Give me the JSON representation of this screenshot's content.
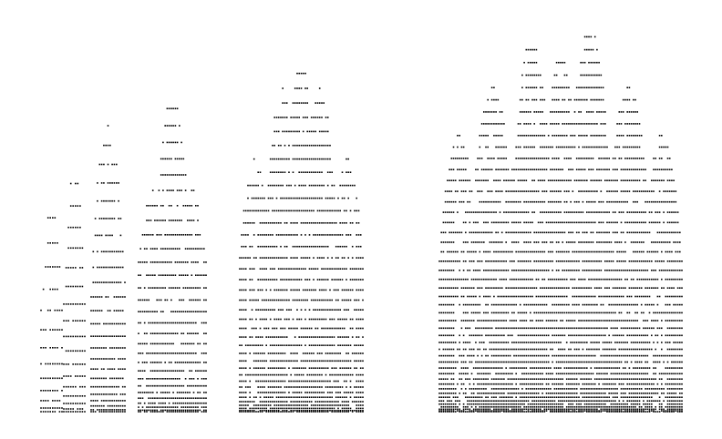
{
  "figure": {
    "kind": "dot-pattern-panels",
    "ink_color": "#000000",
    "background_color": "#ffffff",
    "panels": [
      {
        "id": "panel-1",
        "levels": 14,
        "relative_size": 1
      },
      {
        "id": "panel-2",
        "levels": 18,
        "relative_size": 2
      },
      {
        "id": "panel-3",
        "levels": 24,
        "relative_size": 3
      },
      {
        "id": "panel-4",
        "levels": 30,
        "relative_size": 4
      },
      {
        "id": "panel-5",
        "levels": 38,
        "relative_size": 6
      },
      {
        "id": "panel-6",
        "levels": 48,
        "relative_size": 12
      }
    ]
  }
}
